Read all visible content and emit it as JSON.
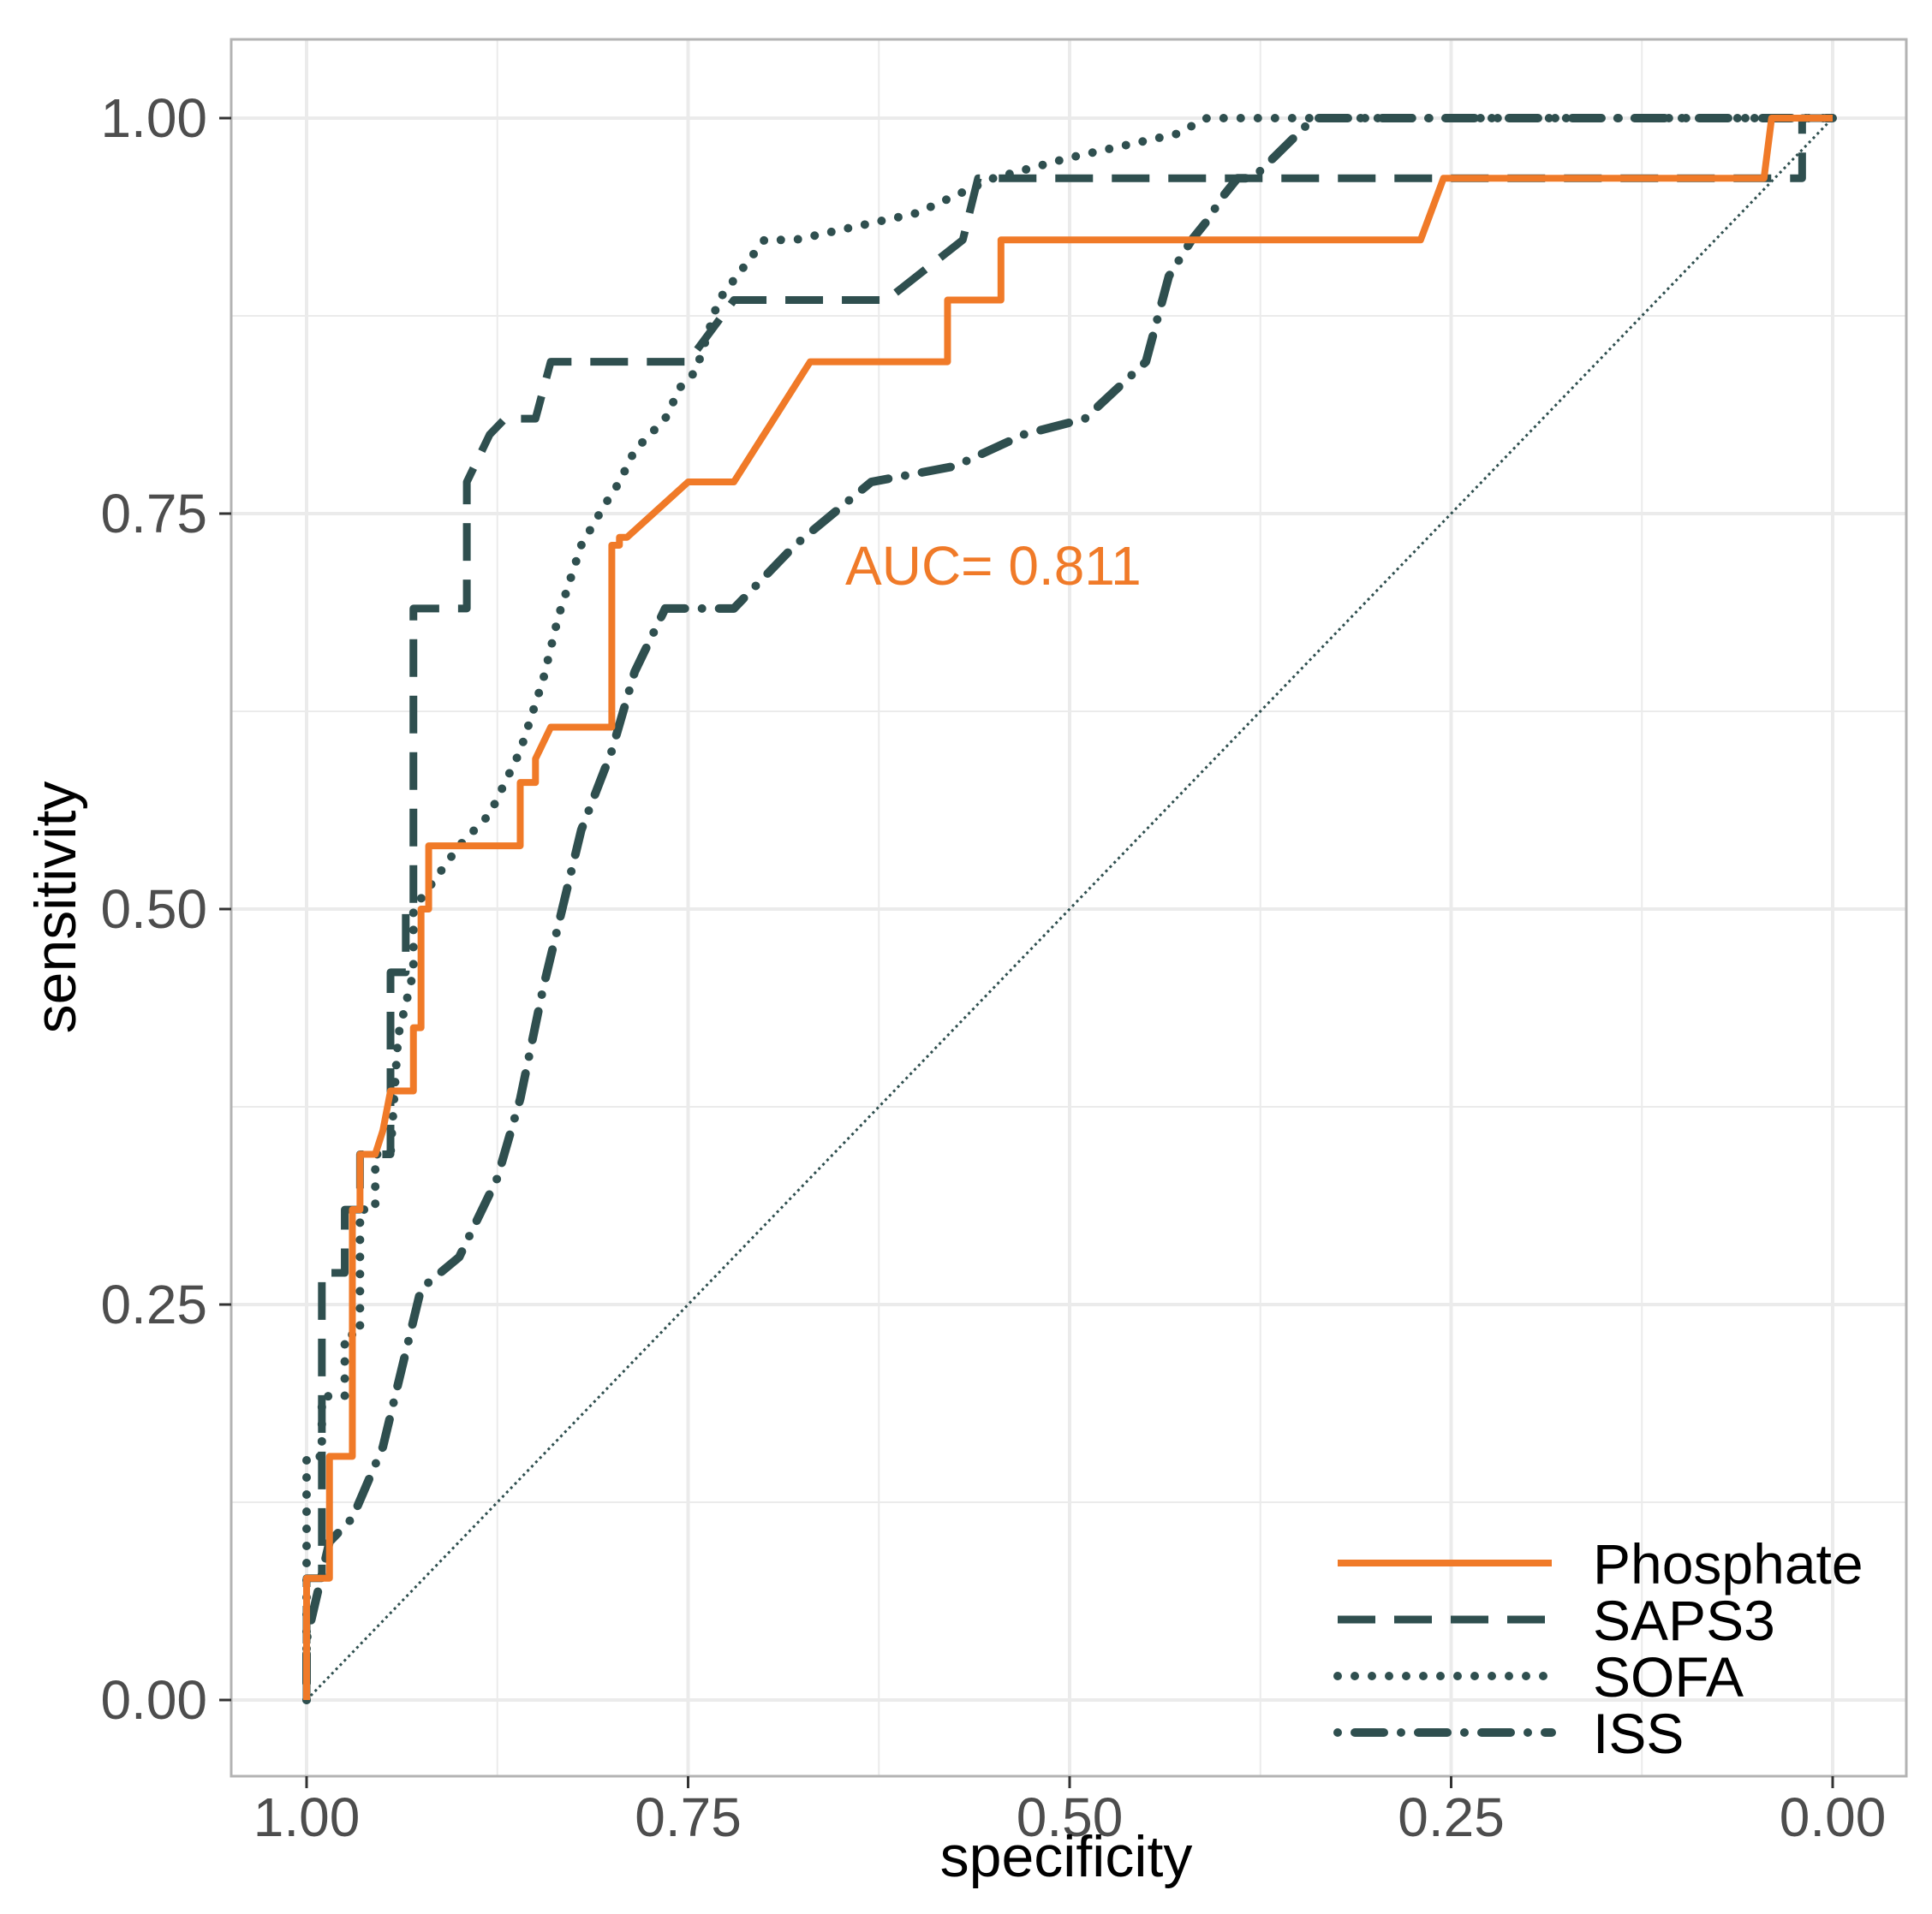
{
  "chart_data": {
    "type": "line",
    "title": "",
    "xlabel": "specificity",
    "ylabel": "sensitivity",
    "xlim": [
      1.0,
      0.0
    ],
    "ylim": [
      0.0,
      1.0
    ],
    "x_reversed": true,
    "xticks": [
      1.0,
      0.75,
      0.5,
      0.25,
      0.0
    ],
    "xtick_labels": [
      "1.00",
      "0.75",
      "0.50",
      "0.25",
      "0.00"
    ],
    "yticks": [
      0.0,
      0.25,
      0.5,
      0.75,
      1.0
    ],
    "ytick_labels": [
      "0.00",
      "0.25",
      "0.50",
      "0.75",
      "1.00"
    ],
    "grid": true,
    "legend_position": "bottom-right",
    "annotation": {
      "text": "AUC= 0.811",
      "specificity": 0.55,
      "sensitivity": 0.705,
      "color": "#f07a28"
    },
    "reference_line": {
      "from": [
        1.0,
        0.0
      ],
      "to": [
        0.0,
        1.0
      ],
      "style": "dotted",
      "color": "#2f4f4f"
    },
    "colors": {
      "phosphate": "#f07a28",
      "others": "#2f4f4f",
      "grid": "#ebebeb",
      "panel_border": "#b3b3b3"
    },
    "series": [
      {
        "name": "Phosphate",
        "style": "solid",
        "color": "#f07a28",
        "specificity": [
          1.0,
          1.0,
          1.0,
          0.985,
          0.985,
          0.97,
          0.97,
          0.965,
          0.965,
          0.955,
          0.95,
          0.945,
          0.945,
          0.93,
          0.93,
          0.925,
          0.925,
          0.92,
          0.92,
          0.86,
          0.86,
          0.85,
          0.85,
          0.84,
          0.84,
          0.8,
          0.8,
          0.795,
          0.795,
          0.79,
          0.75,
          0.72,
          0.72,
          0.67,
          0.67,
          0.58,
          0.58,
          0.565,
          0.565,
          0.545,
          0.545,
          0.27,
          0.27,
          0.255,
          0.255,
          0.045,
          0.045,
          0.04,
          0.04,
          0.0
        ],
        "sensitivity": [
          0.0,
          0.04,
          0.077,
          0.077,
          0.154,
          0.154,
          0.31,
          0.31,
          0.345,
          0.345,
          0.36,
          0.385,
          0.385,
          0.385,
          0.425,
          0.425,
          0.5,
          0.5,
          0.54,
          0.54,
          0.58,
          0.58,
          0.595,
          0.615,
          0.615,
          0.615,
          0.73,
          0.73,
          0.735,
          0.735,
          0.77,
          0.77,
          0.77,
          0.846,
          0.846,
          0.846,
          0.885,
          0.885,
          0.885,
          0.885,
          0.923,
          0.923,
          0.923,
          0.962,
          0.962,
          0.962,
          0.962,
          1.0,
          1.0,
          1.0
        ]
      },
      {
        "name": "SAPS3",
        "style": "dashed",
        "color": "#2f4f4f",
        "specificity": [
          1.0,
          1.0,
          0.99,
          0.99,
          0.975,
          0.975,
          0.965,
          0.965,
          0.945,
          0.945,
          0.935,
          0.935,
          0.93,
          0.93,
          0.915,
          0.915,
          0.895,
          0.895,
          0.88,
          0.87,
          0.86,
          0.86,
          0.85,
          0.84,
          0.835,
          0.835,
          0.75,
          0.75,
          0.72,
          0.72,
          0.62,
          0.62,
          0.57,
          0.57,
          0.56,
          0.56,
          0.02,
          0.02,
          0.0
        ],
        "sensitivity": [
          0.0,
          0.077,
          0.077,
          0.27,
          0.27,
          0.31,
          0.31,
          0.345,
          0.345,
          0.46,
          0.46,
          0.5,
          0.5,
          0.69,
          0.69,
          0.69,
          0.69,
          0.77,
          0.8,
          0.81,
          0.81,
          0.81,
          0.81,
          0.846,
          0.846,
          0.846,
          0.846,
          0.846,
          0.885,
          0.885,
          0.885,
          0.885,
          0.923,
          0.923,
          0.962,
          0.962,
          0.962,
          1.0,
          1.0
        ]
      },
      {
        "name": "SOFA",
        "style": "dotted",
        "color": "#2f4f4f",
        "specificity": [
          1.0,
          1.0,
          0.99,
          0.99,
          0.975,
          0.975,
          0.965,
          0.965,
          0.955,
          0.955,
          0.945,
          0.94,
          0.93,
          0.93,
          0.915,
          0.9,
          0.89,
          0.88,
          0.87,
          0.86,
          0.855,
          0.845,
          0.835,
          0.82,
          0.805,
          0.795,
          0.785,
          0.765,
          0.755,
          0.745,
          0.73,
          0.7,
          0.68,
          0.6,
          0.55,
          0.5,
          0.43,
          0.41,
          0.0
        ],
        "sensitivity": [
          0.0,
          0.154,
          0.154,
          0.192,
          0.192,
          0.231,
          0.231,
          0.31,
          0.31,
          0.345,
          0.345,
          0.42,
          0.46,
          0.5,
          0.52,
          0.54,
          0.55,
          0.56,
          0.58,
          0.6,
          0.615,
          0.645,
          0.685,
          0.73,
          0.755,
          0.77,
          0.79,
          0.81,
          0.83,
          0.84,
          0.885,
          0.923,
          0.923,
          0.94,
          0.962,
          0.975,
          0.99,
          1.0,
          1.0
        ]
      },
      {
        "name": "ISS",
        "style": "dotdash",
        "color": "#2f4f4f",
        "specificity": [
          1.0,
          1.0,
          0.985,
          0.97,
          0.95,
          0.925,
          0.9,
          0.875,
          0.86,
          0.845,
          0.83,
          0.82,
          0.8,
          0.785,
          0.765,
          0.75,
          0.72,
          0.68,
          0.63,
          0.575,
          0.53,
          0.49,
          0.45,
          0.435,
          0.42,
          0.41,
          0.4,
          0.39,
          0.38,
          0.34,
          0.32,
          0.0
        ],
        "sensitivity": [
          0.0,
          0.038,
          0.1,
          0.115,
          0.16,
          0.26,
          0.28,
          0.33,
          0.38,
          0.45,
          0.51,
          0.55,
          0.6,
          0.65,
          0.69,
          0.69,
          0.69,
          0.73,
          0.77,
          0.78,
          0.8,
          0.81,
          0.846,
          0.9,
          0.923,
          0.935,
          0.95,
          0.962,
          0.962,
          1.0,
          1.0,
          1.0
        ]
      }
    ]
  }
}
